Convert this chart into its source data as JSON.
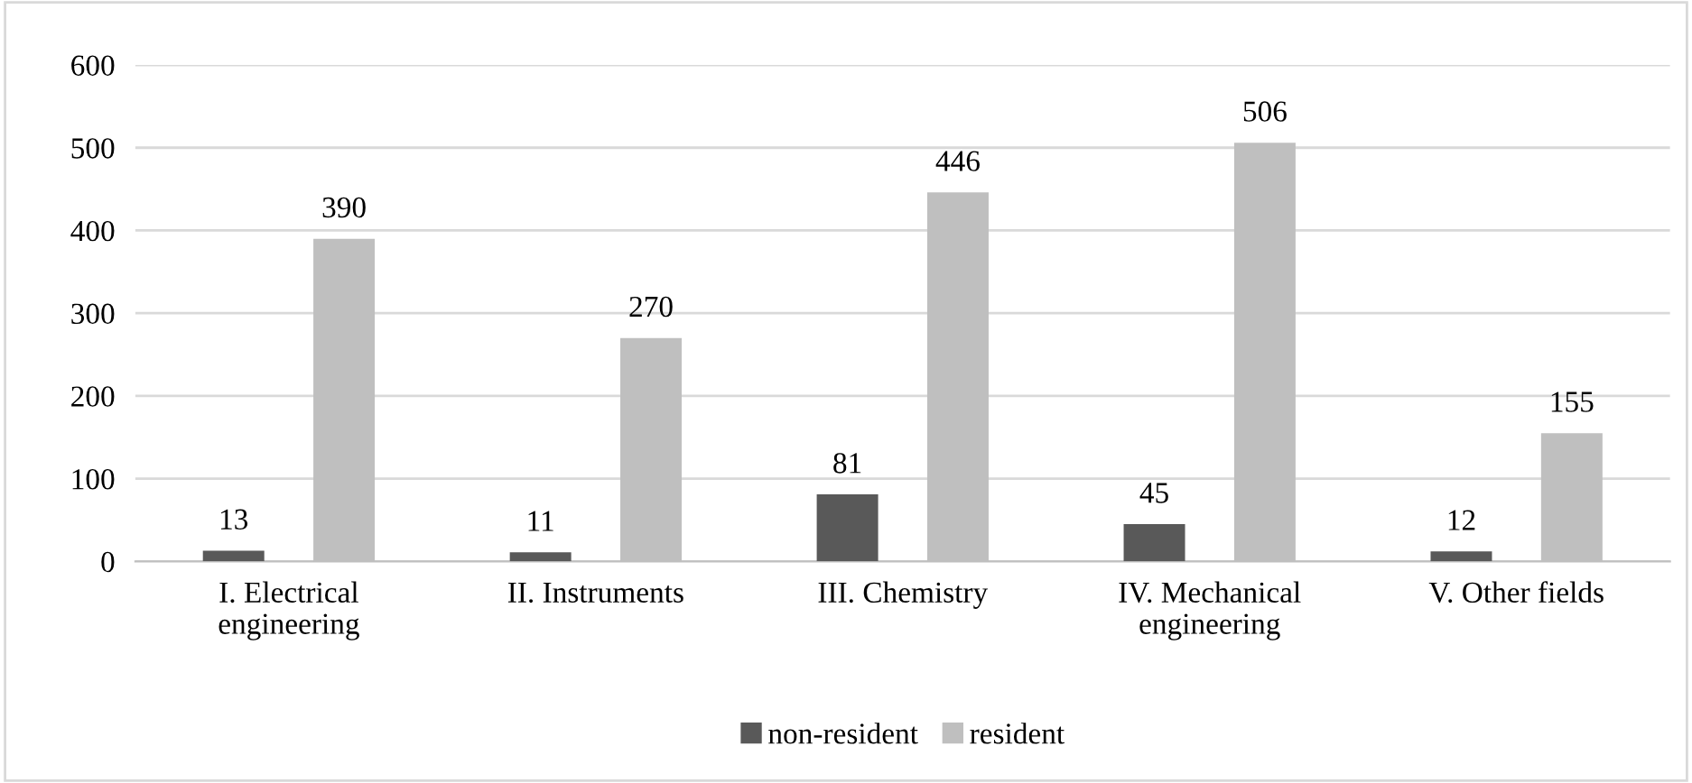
{
  "chart_data": {
    "type": "bar",
    "categories": [
      "I. Electrical\nengineering",
      "II. Instruments",
      "III. Chemistry",
      "IV. Mechanical\nengineering",
      "V. Other fields"
    ],
    "series": [
      {
        "name": "non-resident",
        "color": "#595959",
        "values": [
          13,
          11,
          81,
          45,
          12
        ]
      },
      {
        "name": "resident",
        "color": "#bfbfbf",
        "values": [
          390,
          270,
          446,
          506,
          155
        ]
      }
    ],
    "ylim": [
      0,
      600
    ],
    "yticks": [
      0,
      100,
      200,
      300,
      400,
      500,
      600
    ],
    "grid": "y",
    "legend": "bottom",
    "data_labels": true
  }
}
